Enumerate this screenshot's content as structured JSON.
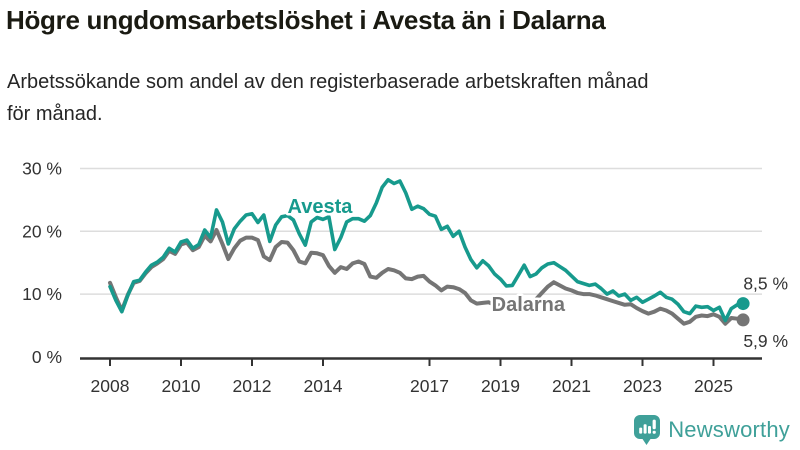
{
  "header": {
    "title": "Högre ungdomsarbetslöshet i Avesta än i Dalarna",
    "subtitle_lines": [
      "Arbetssökande som andel av den registerbaserade arbetskraften månad",
      "för månad."
    ]
  },
  "footer": {
    "brand": "Newsworthy",
    "logo_icon": "bar-chart-speech-bubble-icon"
  },
  "colors": {
    "avesta_teal": "#179a8d",
    "dalarna_gray": "#757575",
    "gridline": "#dddddd",
    "axis": "#333333",
    "title_text": "#1a1a12",
    "logo_teal": "#3fa099"
  },
  "chart_data": {
    "type": "line",
    "title": "Högre ungdomsarbetslöshet i Avesta än i Dalarna",
    "xlabel": "",
    "ylabel": "Arbetssökande som andel av den registerbaserade arbetskraften (%)",
    "grid": true,
    "legend_position": "inline-labels-on-lines",
    "x_unit": "year (monthly series sampled bi-monthly)",
    "x_start": 2008,
    "x_end": 2025.83,
    "samples_per_year": 6,
    "x_ticks": [
      2008,
      2010,
      2012,
      2014,
      2017,
      2019,
      2021,
      2023,
      2025
    ],
    "y_ticks": [
      {
        "value": 0,
        "label": "0 %"
      },
      {
        "value": 10,
        "label": "10 %"
      },
      {
        "value": 20,
        "label": "20 %"
      },
      {
        "value": 30,
        "label": "30 %"
      }
    ],
    "ylim": [
      0,
      30
    ],
    "xlim": [
      2007.2,
      2026.4
    ],
    "series": [
      {
        "name": "Avesta",
        "color": "#179a8d",
        "line_width": 3.6,
        "end_value": 8.5,
        "end_label": "8,5 %",
        "end_label_dy": -14,
        "label_pos": {
          "x": 2013.0,
          "y": 22.9
        },
        "values": [
          11.2,
          9.0,
          7.2,
          9.8,
          12.0,
          12.2,
          13.5,
          14.6,
          15.1,
          15.9,
          17.3,
          16.7,
          18.3,
          18.6,
          17.3,
          17.9,
          20.2,
          19.0,
          23.4,
          21.5,
          18.0,
          20.4,
          21.6,
          22.6,
          22.8,
          21.4,
          22.6,
          18.4,
          21.0,
          22.3,
          22.5,
          21.8,
          19.6,
          17.8,
          21.5,
          22.2,
          21.9,
          22.3,
          17.1,
          19.0,
          21.5,
          22.0,
          22.0,
          21.6,
          22.5,
          24.5,
          27.0,
          28.2,
          27.6,
          28.0,
          26.1,
          23.5,
          24.0,
          23.6,
          22.7,
          22.4,
          20.3,
          20.8,
          19.2,
          20.0,
          17.5,
          15.5,
          14.2,
          15.3,
          14.5,
          13.2,
          12.4,
          11.3,
          11.4,
          13.0,
          14.6,
          12.8,
          13.2,
          14.2,
          14.8,
          15.0,
          14.4,
          13.8,
          12.9,
          12.0,
          11.7,
          11.4,
          11.6,
          10.9,
          10.0,
          10.5,
          9.7,
          10.0,
          9.0,
          9.5,
          8.7,
          9.2,
          9.7,
          10.3,
          9.5,
          9.2,
          8.4,
          7.2,
          6.9,
          8.1,
          7.9,
          8.0,
          7.4,
          7.9,
          5.8,
          7.7,
          8.3,
          8.5
        ]
      },
      {
        "name": "Dalarna",
        "color": "#757575",
        "line_width": 4,
        "end_value": 5.9,
        "end_label": "5,9 %",
        "end_label_dy": 27,
        "label_pos": {
          "x": 2018.75,
          "y": 7.3
        },
        "values": [
          11.8,
          9.5,
          7.4,
          9.9,
          11.8,
          12.1,
          13.3,
          14.3,
          14.9,
          15.6,
          16.9,
          16.4,
          17.9,
          18.2,
          17.0,
          17.5,
          19.3,
          18.4,
          20.2,
          18.0,
          15.6,
          17.3,
          18.5,
          19.0,
          19.0,
          18.6,
          16.0,
          15.4,
          17.5,
          18.3,
          18.2,
          17.0,
          15.2,
          14.9,
          16.6,
          16.5,
          16.2,
          14.5,
          13.4,
          14.3,
          14.0,
          14.9,
          15.2,
          14.8,
          12.8,
          12.6,
          13.4,
          14.0,
          13.8,
          13.4,
          12.5,
          12.4,
          12.8,
          12.9,
          12.0,
          11.4,
          10.6,
          11.2,
          11.1,
          10.8,
          10.2,
          9.0,
          8.5,
          8.6,
          8.7,
          8.3,
          8.2,
          7.9,
          7.7,
          8.0,
          8.3,
          8.5,
          9.2,
          10.2,
          11.2,
          11.9,
          11.4,
          10.9,
          10.6,
          10.2,
          10.0,
          10.0,
          9.8,
          9.5,
          9.2,
          8.9,
          8.6,
          8.3,
          8.4,
          7.8,
          7.3,
          6.9,
          7.2,
          7.7,
          7.4,
          6.9,
          6.1,
          5.3,
          5.6,
          6.4,
          6.6,
          6.5,
          6.8,
          6.4,
          5.3,
          6.2,
          6.1,
          5.9
        ]
      }
    ]
  }
}
